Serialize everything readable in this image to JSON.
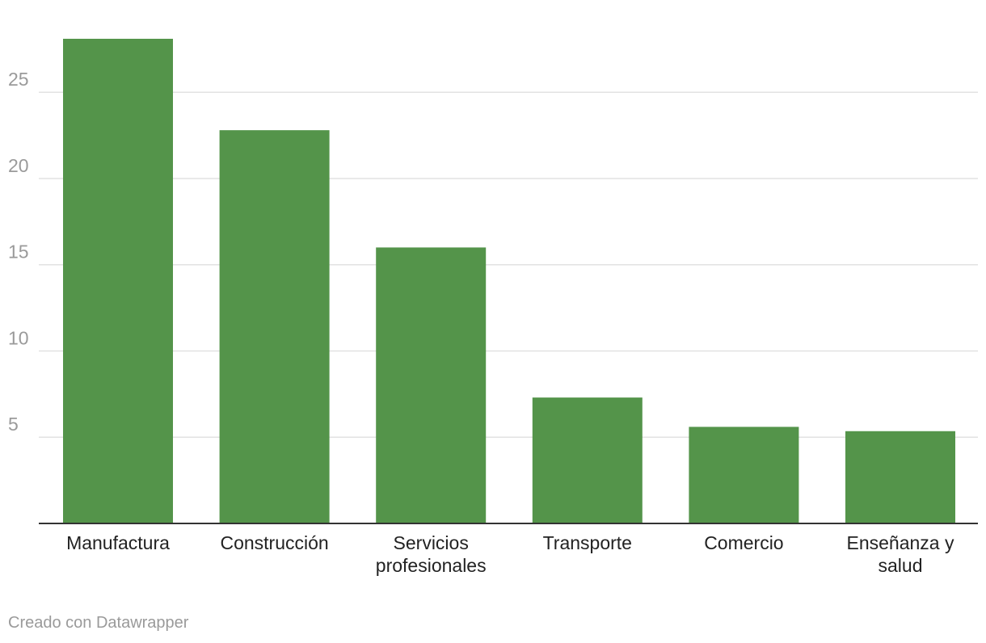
{
  "chart_data": {
    "type": "bar",
    "categories": [
      [
        "Manufactura"
      ],
      [
        "Construcción"
      ],
      [
        "Servicios",
        "profesionales"
      ],
      [
        "Transporte"
      ],
      [
        "Comercio"
      ],
      [
        "Enseñanza y",
        "salud"
      ]
    ],
    "values": [
      28.1,
      22.8,
      16.0,
      7.3,
      5.6,
      5.35
    ],
    "yticks": [
      5,
      10,
      15,
      20,
      25
    ],
    "ylim": [
      0,
      28.1
    ],
    "grid": true,
    "bar_color": "#54944a",
    "title": "",
    "xlabel": "",
    "ylabel": ""
  },
  "footer": {
    "credit": "Creado con Datawrapper"
  }
}
